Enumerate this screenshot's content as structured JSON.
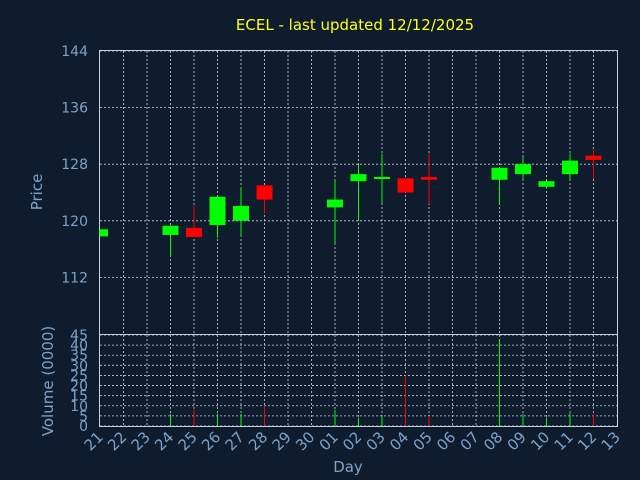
{
  "chart_data": {
    "type": "candlestick",
    "title": "ECEL - last updated 12/12/2025",
    "ylabel": "Price",
    "volume_label": "Volume (0000)",
    "xlabel": "Day",
    "up_color": "#00ff00",
    "down_color": "#ff0000",
    "price_ylim": [
      104,
      144
    ],
    "price_ticks": [
      "144",
      "136",
      "128",
      "120",
      "112"
    ],
    "volume_ylim": [
      0,
      45
    ],
    "volume_ticks": [
      "45",
      "40",
      "35",
      "30",
      "25",
      "20",
      "15",
      "10",
      "5",
      "0"
    ],
    "days": [
      "21",
      "22",
      "23",
      "24",
      "25",
      "26",
      "27",
      "28",
      "29",
      "30",
      "01",
      "02",
      "03",
      "04",
      "05",
      "06",
      "07",
      "08",
      "09",
      "10",
      "11",
      "12",
      "13"
    ],
    "candles": [
      {
        "day": "21",
        "open": 117.8,
        "close": 118.8,
        "high": 118.8,
        "low": 117.8,
        "volume": 0
      },
      {
        "day": "24",
        "open": 118.0,
        "close": 119.3,
        "high": 119.3,
        "low": 114.9,
        "volume": 6
      },
      {
        "day": "25",
        "open": 119.0,
        "close": 117.7,
        "high": 122.1,
        "low": 117.7,
        "volume": 8
      },
      {
        "day": "26",
        "open": 119.4,
        "close": 123.4,
        "high": 123.4,
        "low": 117.6,
        "volume": 6
      },
      {
        "day": "27",
        "open": 120.0,
        "close": 122.1,
        "high": 124.8,
        "low": 117.9,
        "volume": 6
      },
      {
        "day": "28",
        "open": 125.0,
        "close": 123.0,
        "high": 125.0,
        "low": 121.0,
        "volume": 10
      },
      {
        "day": "01",
        "open": 121.9,
        "close": 123.0,
        "high": 125.7,
        "low": 116.7,
        "volume": 8
      },
      {
        "day": "02",
        "open": 125.6,
        "close": 126.6,
        "high": 127.9,
        "low": 120.0,
        "volume": 4
      },
      {
        "day": "03",
        "open": 125.9,
        "close": 126.2,
        "high": 129.5,
        "low": 122.5,
        "volume": 5
      },
      {
        "day": "04",
        "open": 126.0,
        "close": 124.0,
        "high": 126.0,
        "low": 124.0,
        "volume": 25
      },
      {
        "day": "05",
        "open": 126.2,
        "close": 125.8,
        "high": 129.5,
        "low": 122.4,
        "volume": 5
      },
      {
        "day": "08",
        "open": 125.8,
        "close": 127.5,
        "high": 127.5,
        "low": 122.3,
        "volume": 43
      },
      {
        "day": "09",
        "open": 126.6,
        "close": 128.0,
        "high": 129.0,
        "low": 125.9,
        "volume": 6
      },
      {
        "day": "10",
        "open": 124.8,
        "close": 125.6,
        "high": 125.6,
        "low": 124.5,
        "volume": 4
      },
      {
        "day": "11",
        "open": 126.6,
        "close": 128.5,
        "high": 129.5,
        "low": 125.8,
        "volume": 7
      },
      {
        "day": "12",
        "open": 129.2,
        "close": 128.6,
        "high": 130.0,
        "low": 125.9,
        "volume": 6
      }
    ]
  }
}
